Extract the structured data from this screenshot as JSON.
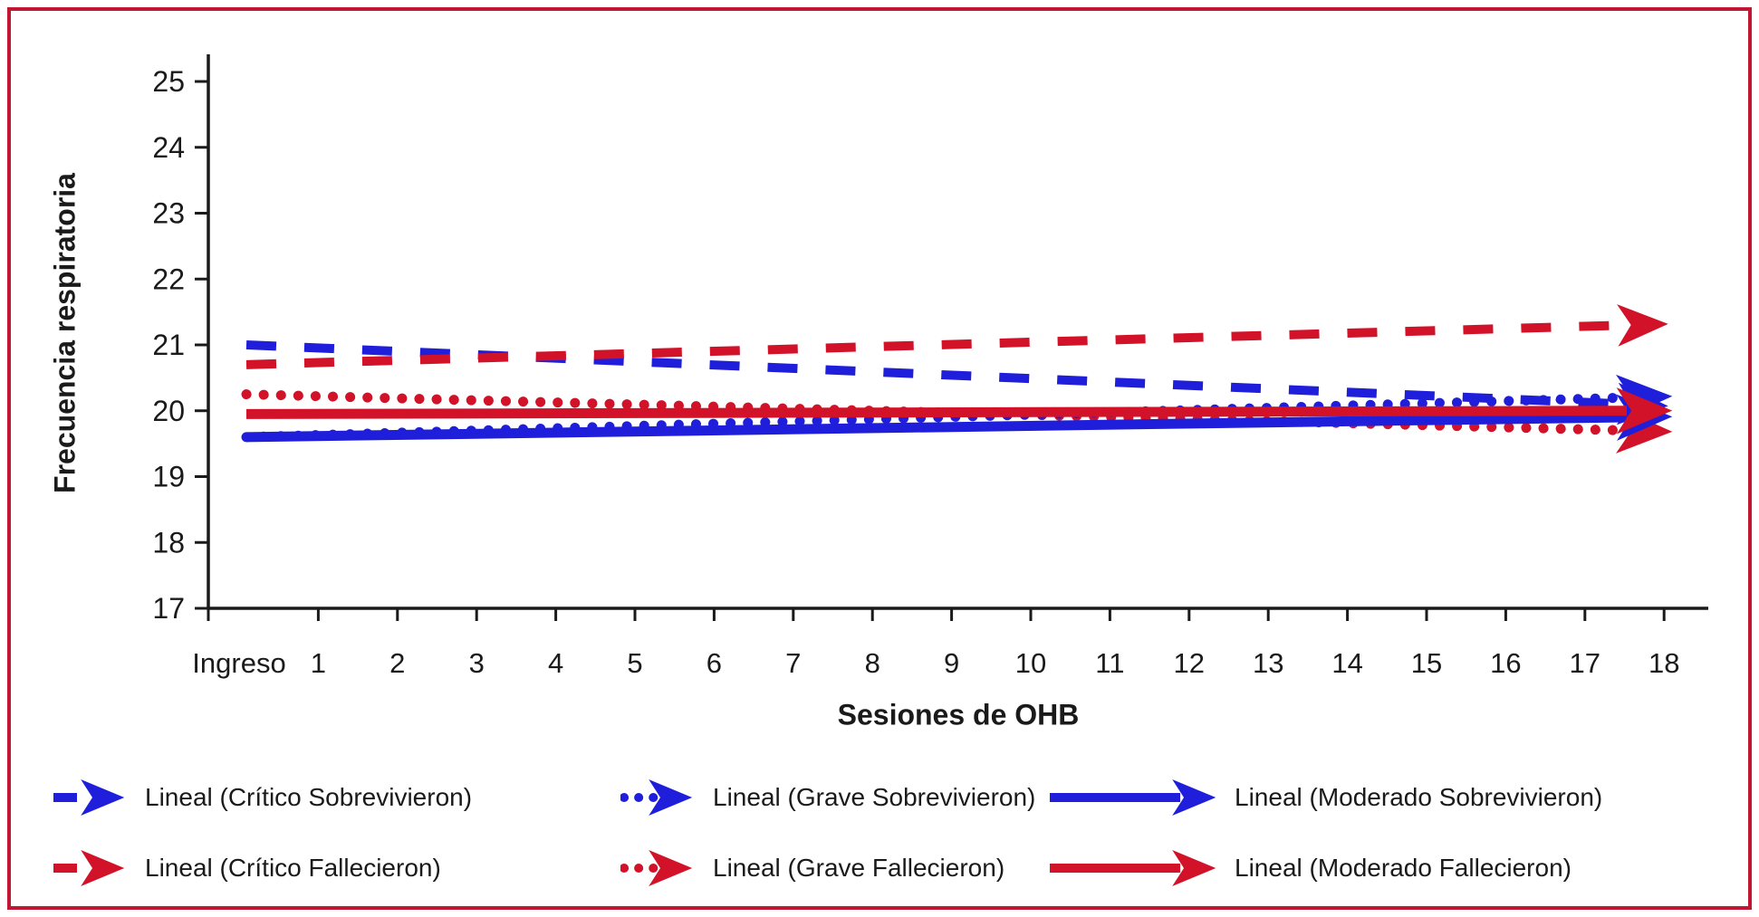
{
  "frame": {
    "border_color": "#c21734",
    "background": "#ffffff"
  },
  "chart_data": {
    "type": "line",
    "title": "",
    "xlabel": "Sesiones de OHB",
    "ylabel": "Frecuencia respiratoria",
    "x_categories": [
      "Ingreso",
      "1",
      "2",
      "3",
      "4",
      "5",
      "6",
      "7",
      "8",
      "9",
      "10",
      "11",
      "12",
      "13",
      "14",
      "15",
      "16",
      "17",
      "18"
    ],
    "y_ticks": [
      17,
      18,
      19,
      20,
      21,
      22,
      23,
      24,
      25
    ],
    "ylim": [
      17,
      25
    ],
    "grid": false,
    "legend_position": "bottom",
    "line_ends": "arrowheads",
    "series": [
      {
        "name": "Lineal (Crítico Sobrevivieron)",
        "color": "#1f1fdb",
        "style": "dashed",
        "x_span": [
          "Ingreso",
          "18"
        ],
        "values": [
          21.0,
          20.1
        ]
      },
      {
        "name": "Lineal (Crítico Fallecieron)",
        "color": "#d11228",
        "style": "dashed",
        "x_span": [
          "Ingreso",
          "18"
        ],
        "values": [
          20.7,
          21.3
        ]
      },
      {
        "name": "Lineal (Grave Sobrevivieron)",
        "color": "#1f1fdb",
        "style": "dotted",
        "x_span": [
          "Ingreso",
          "18"
        ],
        "values": [
          19.6,
          20.2
        ]
      },
      {
        "name": "Lineal (Grave Fallecieron)",
        "color": "#d11228",
        "style": "dotted",
        "x_span": [
          "Ingreso",
          "18"
        ],
        "values": [
          20.25,
          19.7
        ]
      },
      {
        "name": "Lineal (Moderado Sobrevivieron)",
        "color": "#1f1fdb",
        "style": "solid",
        "x_span": [
          "Ingreso",
          "18"
        ],
        "values": [
          19.6,
          19.9
        ]
      },
      {
        "name": "Lineal (Moderado Fallecieron)",
        "color": "#d11228",
        "style": "solid",
        "x_span": [
          "Ingreso",
          "18"
        ],
        "values": [
          19.95,
          20.0
        ]
      }
    ]
  }
}
